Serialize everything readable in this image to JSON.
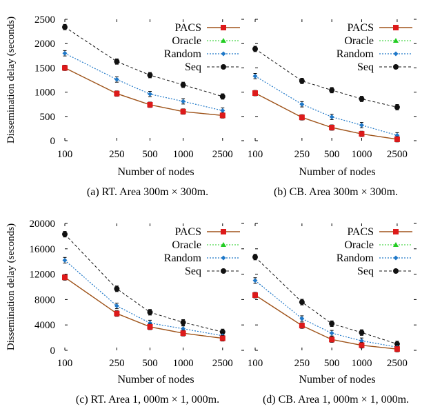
{
  "ylabel": "Dissemination delay (seconds)",
  "legend": [
    "PACS",
    "Oracle",
    "Random",
    "Seq"
  ],
  "colors": {
    "PACS": "#dd1a1a",
    "Oracle": "#22cc22",
    "Random": "#1f78c8",
    "Seq": "#111111",
    "pacs_line": "#a0521a"
  },
  "chart_data": [
    {
      "type": "line",
      "caption": "(a)  RT. Area 300m × 300m.",
      "xlabel": "Number of nodes",
      "x": [
        "100",
        "250",
        "500",
        "1000",
        "2500"
      ],
      "ylim": [
        0,
        2500
      ],
      "yticks": [
        "0",
        "500",
        "1000",
        "1500",
        "2000",
        "2500"
      ],
      "legend_position": "top-right",
      "series": [
        {
          "name": "PACS",
          "values": [
            1500,
            970,
            740,
            600,
            520
          ]
        },
        {
          "name": "Oracle",
          "values": [
            1500,
            970,
            740,
            600,
            520
          ]
        },
        {
          "name": "Random",
          "values": [
            1800,
            1260,
            960,
            810,
            620
          ]
        },
        {
          "name": "Seq",
          "values": [
            2340,
            1630,
            1350,
            1150,
            910
          ]
        }
      ]
    },
    {
      "type": "line",
      "caption": "(b)  CB. Area 300m × 300m.",
      "xlabel": "Number of nodes",
      "x": [
        "100",
        "250",
        "500",
        "1000",
        "2500"
      ],
      "ylim": [
        0,
        2500
      ],
      "yticks": [],
      "legend_position": "top-right",
      "series": [
        {
          "name": "PACS",
          "values": [
            980,
            480,
            270,
            140,
            30
          ]
        },
        {
          "name": "Oracle",
          "values": [
            980,
            480,
            270,
            140,
            30
          ]
        },
        {
          "name": "Random",
          "values": [
            1330,
            750,
            490,
            320,
            110
          ]
        },
        {
          "name": "Seq",
          "values": [
            1890,
            1230,
            1040,
            860,
            690
          ]
        }
      ]
    },
    {
      "type": "line",
      "caption": "(c)  RT. Area 1, 000m × 1, 000m.",
      "xlabel": "Number of nodes",
      "x": [
        "100",
        "250",
        "500",
        "1000",
        "2500"
      ],
      "ylim": [
        0,
        20000
      ],
      "yticks": [
        "0",
        "4000",
        "8000",
        "12000",
        "16000",
        "20000"
      ],
      "legend_position": "top-right",
      "series": [
        {
          "name": "PACS",
          "values": [
            11500,
            5800,
            3700,
            2700,
            1900
          ]
        },
        {
          "name": "Oracle",
          "values": [
            11500,
            5800,
            3700,
            2700,
            1900
          ]
        },
        {
          "name": "Random",
          "values": [
            14200,
            7000,
            4300,
            3400,
            2300
          ]
        },
        {
          "name": "Seq",
          "values": [
            18300,
            9700,
            6000,
            4400,
            2900
          ]
        }
      ]
    },
    {
      "type": "line",
      "caption": "(d)  CB. Area 1, 000m × 1, 000m.",
      "xlabel": "Number of nodes",
      "x": [
        "100",
        "250",
        "500",
        "1000",
        "2500"
      ],
      "ylim": [
        0,
        20000
      ],
      "yticks": [],
      "legend_position": "top-right",
      "series": [
        {
          "name": "PACS",
          "values": [
            8700,
            3900,
            1700,
            800,
            200
          ]
        },
        {
          "name": "Oracle",
          "values": [
            8700,
            3900,
            1700,
            800,
            200
          ]
        },
        {
          "name": "Random",
          "values": [
            11000,
            5000,
            2700,
            1500,
            500
          ]
        },
        {
          "name": "Seq",
          "values": [
            14700,
            7600,
            4200,
            2800,
            1000
          ]
        }
      ]
    }
  ]
}
